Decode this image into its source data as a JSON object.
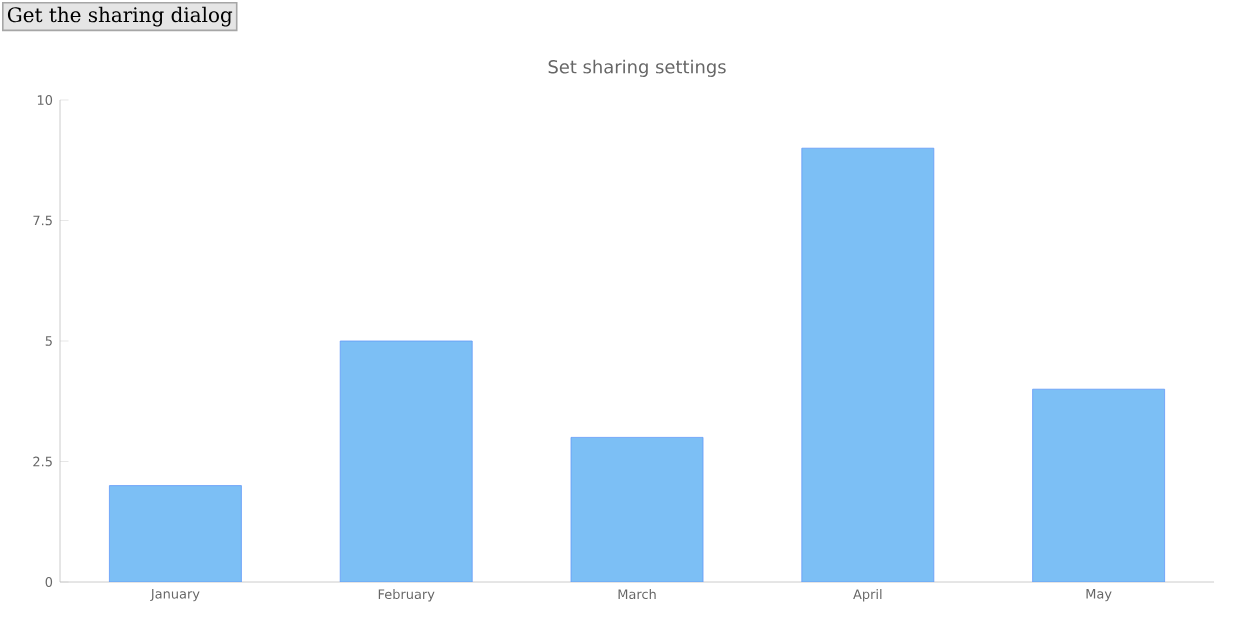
{
  "chart_data": {
    "type": "bar",
    "title": "Set sharing settings",
    "annotations": [
      "Get the sharing dialog"
    ],
    "categories": [
      "January",
      "February",
      "March",
      "April",
      "May"
    ],
    "values": [
      2,
      5,
      3,
      9,
      4
    ],
    "color": "#7cbff5",
    "ylim": [
      0,
      10
    ],
    "yticks": [
      0,
      2.5,
      5,
      7.5,
      10
    ],
    "grid": false
  }
}
